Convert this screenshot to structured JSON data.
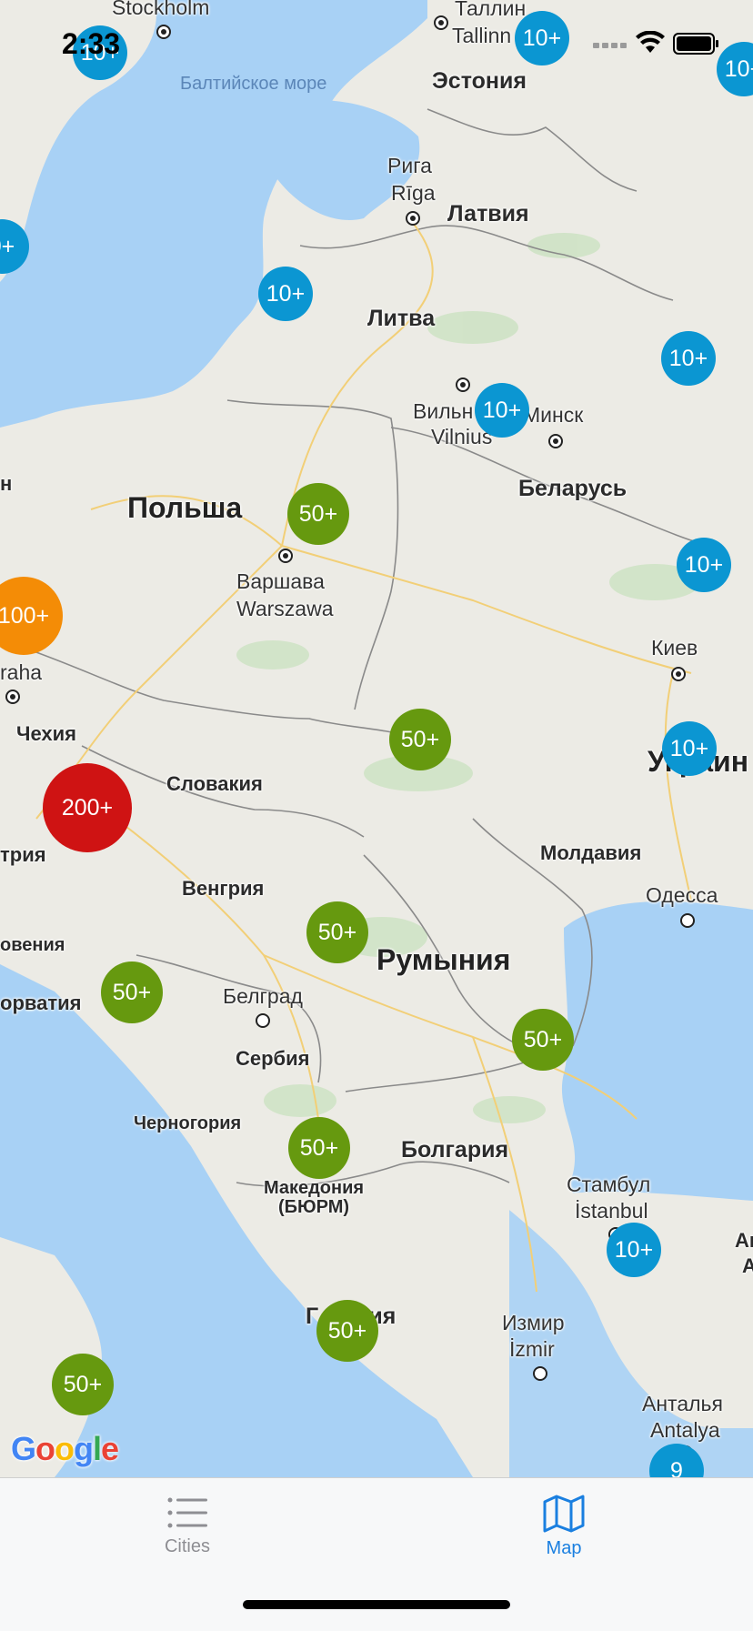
{
  "status": {
    "time": "2:33"
  },
  "map": {
    "water": {
      "baltic": "Балтийское море"
    },
    "countries": {
      "estonia": "Эстония",
      "latvia": "Латвия",
      "lithuania": "Литва",
      "belarus": "Беларусь",
      "poland": "Польша",
      "czechia": "Чехия",
      "slovakia": "Словакия",
      "hungary": "Венгрия",
      "moldova": "Молдавия",
      "romania": "Румыния",
      "serbia": "Сербия",
      "montenegro": "Черногория",
      "macedonia": "Македония (БЮРМ)",
      "bulgaria": "Болгария",
      "greece_partial": "Г",
      "greece_partial2": "ция",
      "ukraine_partial": "Украин",
      "austria_partial": "трия",
      "slovenia_partial": "овения",
      "croatia_partial": "орватия",
      "right_edge_a": "Ан",
      "right_edge_b": "А",
      "left_edge_h": "н"
    },
    "cities": {
      "stockholm": "Stockholm",
      "tallinn_ru": "Таллин",
      "tallinn": "Tallinn",
      "riga_ru": "Рига",
      "riga": "Rīga",
      "vilnius_ru": "Вильн",
      "vilnius": "Vilnius",
      "minsk": "Минск",
      "warsaw_ru": "Варшава",
      "warsaw": "Warszawa",
      "prague_partial": "raha",
      "kiev": "Киев",
      "odessa": "Одесса",
      "belgrade": "Белград",
      "istanbul_ru": "Стамбул",
      "istanbul": "İstanbul",
      "izmir_ru": "Измир",
      "izmir": "İzmir",
      "antalya_ru": "Анталья",
      "antalya": "Antalya"
    },
    "clusters": [
      {
        "label": "10+",
        "level": "10"
      },
      {
        "label": "10+",
        "level": "10"
      },
      {
        "label": "10+",
        "level": "10"
      },
      {
        "label": "0+",
        "level": "10"
      },
      {
        "label": "10+",
        "level": "10"
      },
      {
        "label": "10+",
        "level": "10"
      },
      {
        "label": "10+",
        "level": "10"
      },
      {
        "label": "10+",
        "level": "10"
      },
      {
        "label": "10+",
        "level": "10"
      },
      {
        "label": "10+",
        "level": "10"
      },
      {
        "label": "9",
        "level": "10"
      },
      {
        "label": "50+",
        "level": "50"
      },
      {
        "label": "50+",
        "level": "50"
      },
      {
        "label": "50+",
        "level": "50"
      },
      {
        "label": "50+",
        "level": "50"
      },
      {
        "label": "50+",
        "level": "50"
      },
      {
        "label": "50+",
        "level": "50"
      },
      {
        "label": "50+",
        "level": "50"
      },
      {
        "label": "50+",
        "level": "50"
      },
      {
        "label": "100+",
        "level": "100"
      },
      {
        "label": "200+",
        "level": "200"
      }
    ],
    "attribution": "Google"
  },
  "tabbar": {
    "tabs": [
      {
        "label": "Cities",
        "icon": "list-icon",
        "active": false
      },
      {
        "label": "Map",
        "icon": "map-icon",
        "active": true
      }
    ],
    "colors": {
      "active": "#1a7fe0",
      "inactive": "#8e8e93"
    }
  }
}
